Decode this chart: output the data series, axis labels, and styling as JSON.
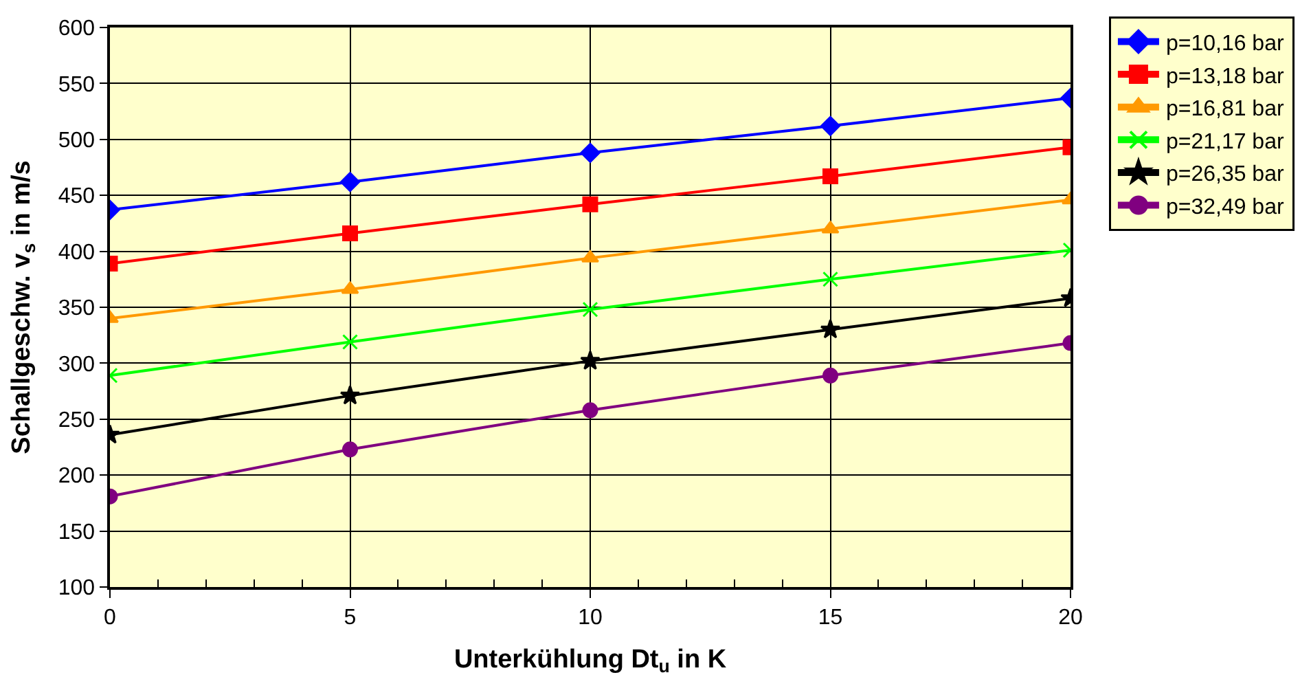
{
  "chart_data": {
    "type": "line",
    "xlabel": "Unterkühlung Dt$_{u}$ in K",
    "ylabel": "Schallgeschw. v$_{s}$ in m/s",
    "x": [
      0,
      5,
      10,
      15,
      20
    ],
    "series": [
      {
        "name": "p=10,16 bar",
        "color": "#0000ff",
        "marker": "diamond",
        "values": [
          437,
          462,
          488,
          512,
          537
        ]
      },
      {
        "name": "p=13,18 bar",
        "color": "#ff0000",
        "marker": "square",
        "values": [
          389,
          416,
          442,
          467,
          493
        ]
      },
      {
        "name": "p=16,81 bar",
        "color": "#ff9900",
        "marker": "triangle",
        "values": [
          340,
          366,
          394,
          420,
          446
        ]
      },
      {
        "name": "p=21,17 bar",
        "color": "#00ff00",
        "marker": "cross",
        "values": [
          289,
          319,
          348,
          375,
          401
        ]
      },
      {
        "name": "p=26,35 bar",
        "color": "#000000",
        "marker": "star",
        "values": [
          236,
          271,
          302,
          330,
          358
        ]
      },
      {
        "name": "p=32,49 bar",
        "color": "#800080",
        "marker": "circle",
        "values": [
          181,
          223,
          258,
          289,
          318
        ]
      }
    ],
    "xlim": [
      0,
      20
    ],
    "xticks": [
      0,
      {
        "value": 1,
        "label": null
      },
      {
        "value": 2,
        "label": null
      },
      {
        "value": 3,
        "label": null
      },
      {
        "value": 4,
        "label": null
      },
      5,
      {
        "value": 6,
        "label": null
      },
      {
        "value": 7,
        "label": null
      },
      {
        "value": 8,
        "label": null
      },
      {
        "value": 9,
        "label": null
      },
      10,
      {
        "value": 11,
        "label": null
      },
      {
        "value": 12,
        "label": null
      },
      {
        "value": 13,
        "label": null
      },
      {
        "value": 14,
        "label": null
      },
      15,
      {
        "value": 16,
        "label": null
      },
      {
        "value": 17,
        "label": null
      },
      {
        "value": 18,
        "label": null
      },
      {
        "value": 19,
        "label": null
      },
      20
    ],
    "ylim": [
      100,
      600
    ],
    "yticks": [
      100,
      150,
      200,
      250,
      300,
      350,
      400,
      450,
      500,
      550,
      600
    ],
    "grid": true,
    "legend": "right",
    "line_style": "solid"
  }
}
